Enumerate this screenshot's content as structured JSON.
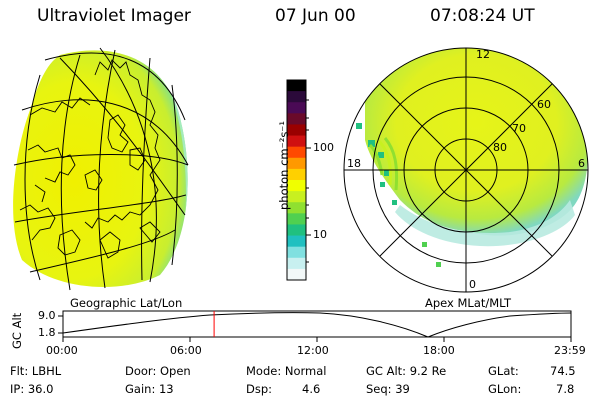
{
  "header": {
    "instrument": "Ultraviolet Imager",
    "date": "07 Jun 00",
    "time": "07:08:24 UT"
  },
  "colorbar": {
    "unit_label": "photon cm⁻²s⁻¹",
    "tick_100": "100",
    "tick_10": "10",
    "colors": [
      "#000000",
      "#2b0a3a",
      "#4a0a55",
      "#6a0a2a",
      "#9a0000",
      "#d01010",
      "#ff4a00",
      "#ff9900",
      "#ffd000",
      "#f0ff00",
      "#c8f020",
      "#90e030",
      "#50d050",
      "#20c080",
      "#20c0c0",
      "#80e0e0",
      "#c8f0f0",
      "#f2f8f8"
    ]
  },
  "geo_map": {
    "label": "Geographic Lat/Lon"
  },
  "polar_map": {
    "label": "Apex MLat/MLT",
    "mlt_labels": {
      "top": "12",
      "left": "18",
      "right": "6",
      "bottom": "0"
    },
    "lat_labels": [
      "60",
      "70",
      "80"
    ]
  },
  "altitude_plot": {
    "ylabel": "GC Alt",
    "y_ticks": [
      "9.0",
      "1.8"
    ],
    "x_ticks": [
      "00:00",
      "06:00",
      "12:00",
      "18:00",
      "23:59"
    ],
    "marker_time": "07:08"
  },
  "info": {
    "flt": "Flt: LBHL",
    "ip": "IP: 36.0",
    "door": "Door: Open",
    "gain": "Gain: 13",
    "mode": "Mode: Normal",
    "dsp_label": "Dsp:",
    "dsp_value": "4.6",
    "gcalt": "GC Alt: 9.2 Re",
    "seq": "Seq: 39",
    "glat_label": "GLat:",
    "glat_value": "74.5",
    "glon_label": "GLon:",
    "glon_value": "7.8"
  }
}
